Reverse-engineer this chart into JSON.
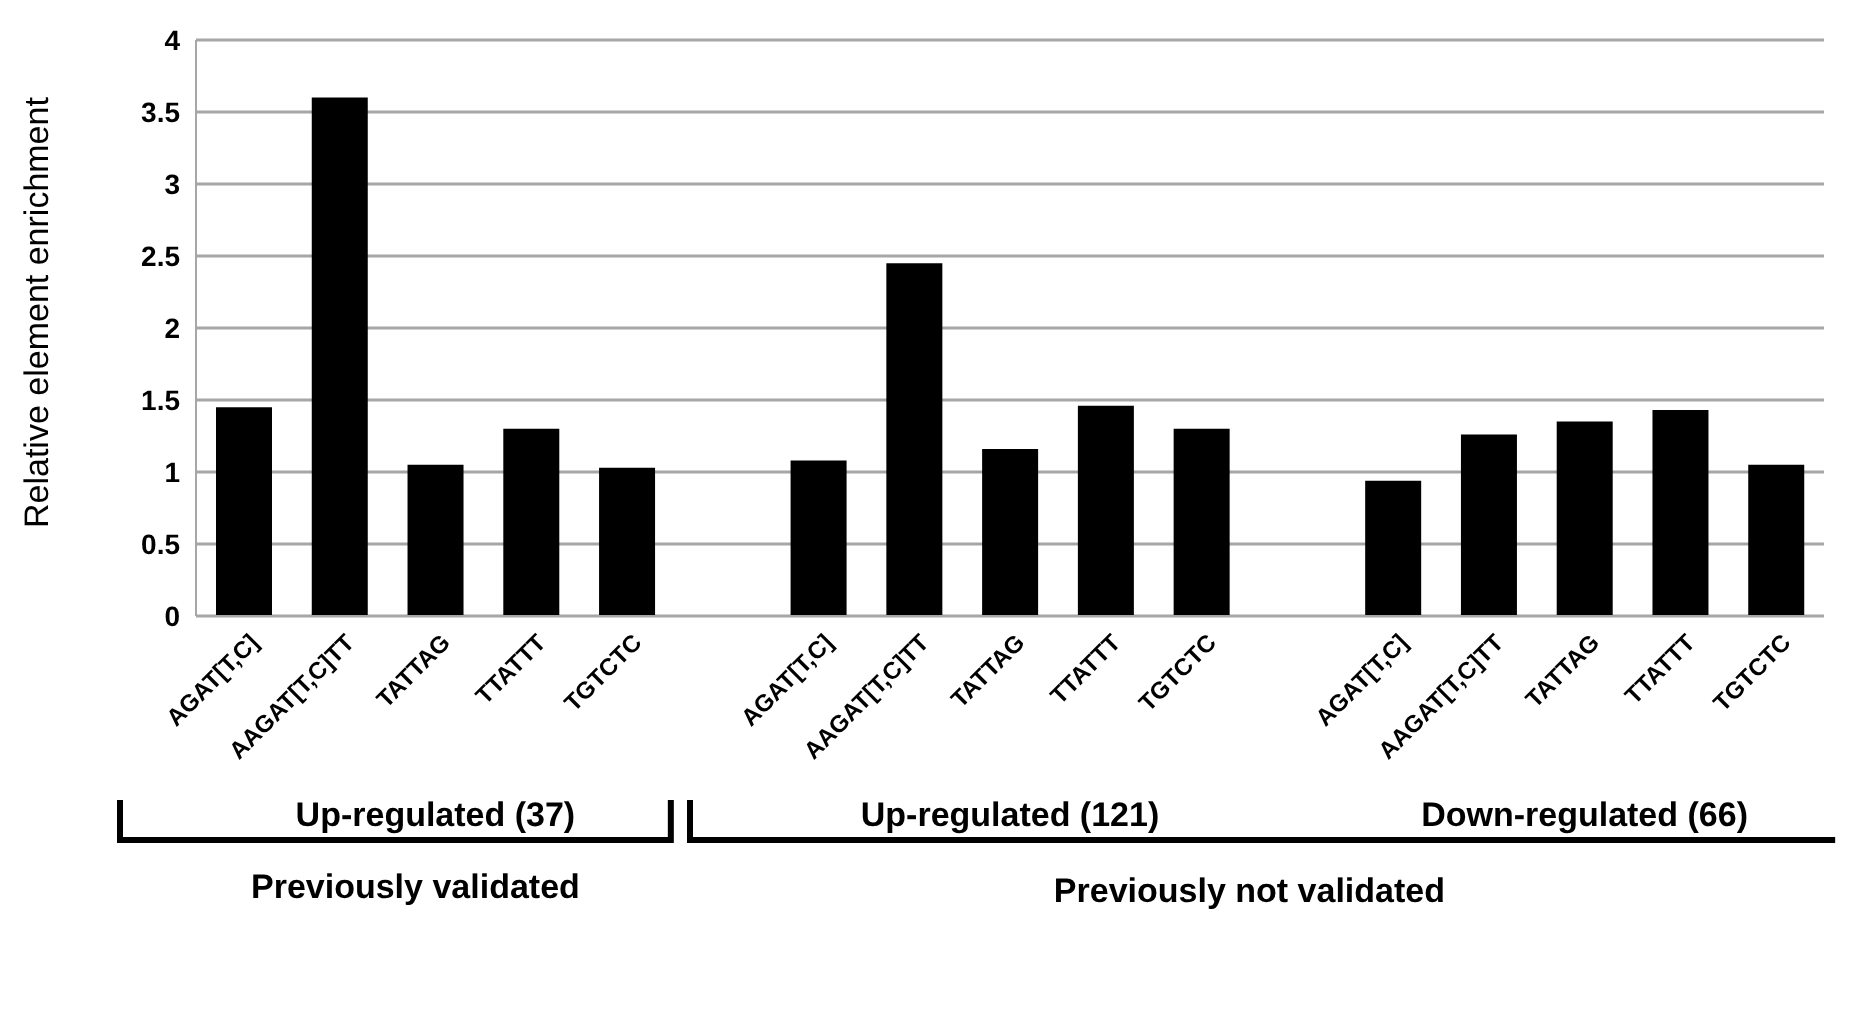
{
  "chart_data": {
    "type": "bar",
    "ylabel": "Relative element enrichment",
    "categories": [
      "AGAT[T,C]",
      "AAGAT[T,C]TT",
      "TATTAG",
      "TTATTT",
      "TGTCTC",
      null,
      "AGAT[T,C]",
      "AAGAT[T,C]TT",
      "TATTAG",
      "TTATTT",
      "TGTCTC",
      null,
      "AGAT[T,C]",
      "AAGAT[T,C]TT",
      "TATTAG",
      "TTATTT",
      "TGTCTC"
    ],
    "values": [
      1.45,
      3.6,
      1.05,
      1.3,
      1.03,
      null,
      1.08,
      2.45,
      1.16,
      1.46,
      1.3,
      null,
      0.94,
      1.26,
      1.35,
      1.43,
      1.05
    ],
    "color": "#000000",
    "ylim": [
      0,
      4
    ],
    "yticks": [
      0,
      0.5,
      1,
      1.5,
      2,
      2.5,
      3,
      3.5,
      4
    ],
    "grid": "y",
    "annotations": [
      "Up-regulated (37)",
      "Up-regulated (121)",
      "Down-regulated (66)",
      "Previously validated",
      "Previously not validated"
    ]
  }
}
